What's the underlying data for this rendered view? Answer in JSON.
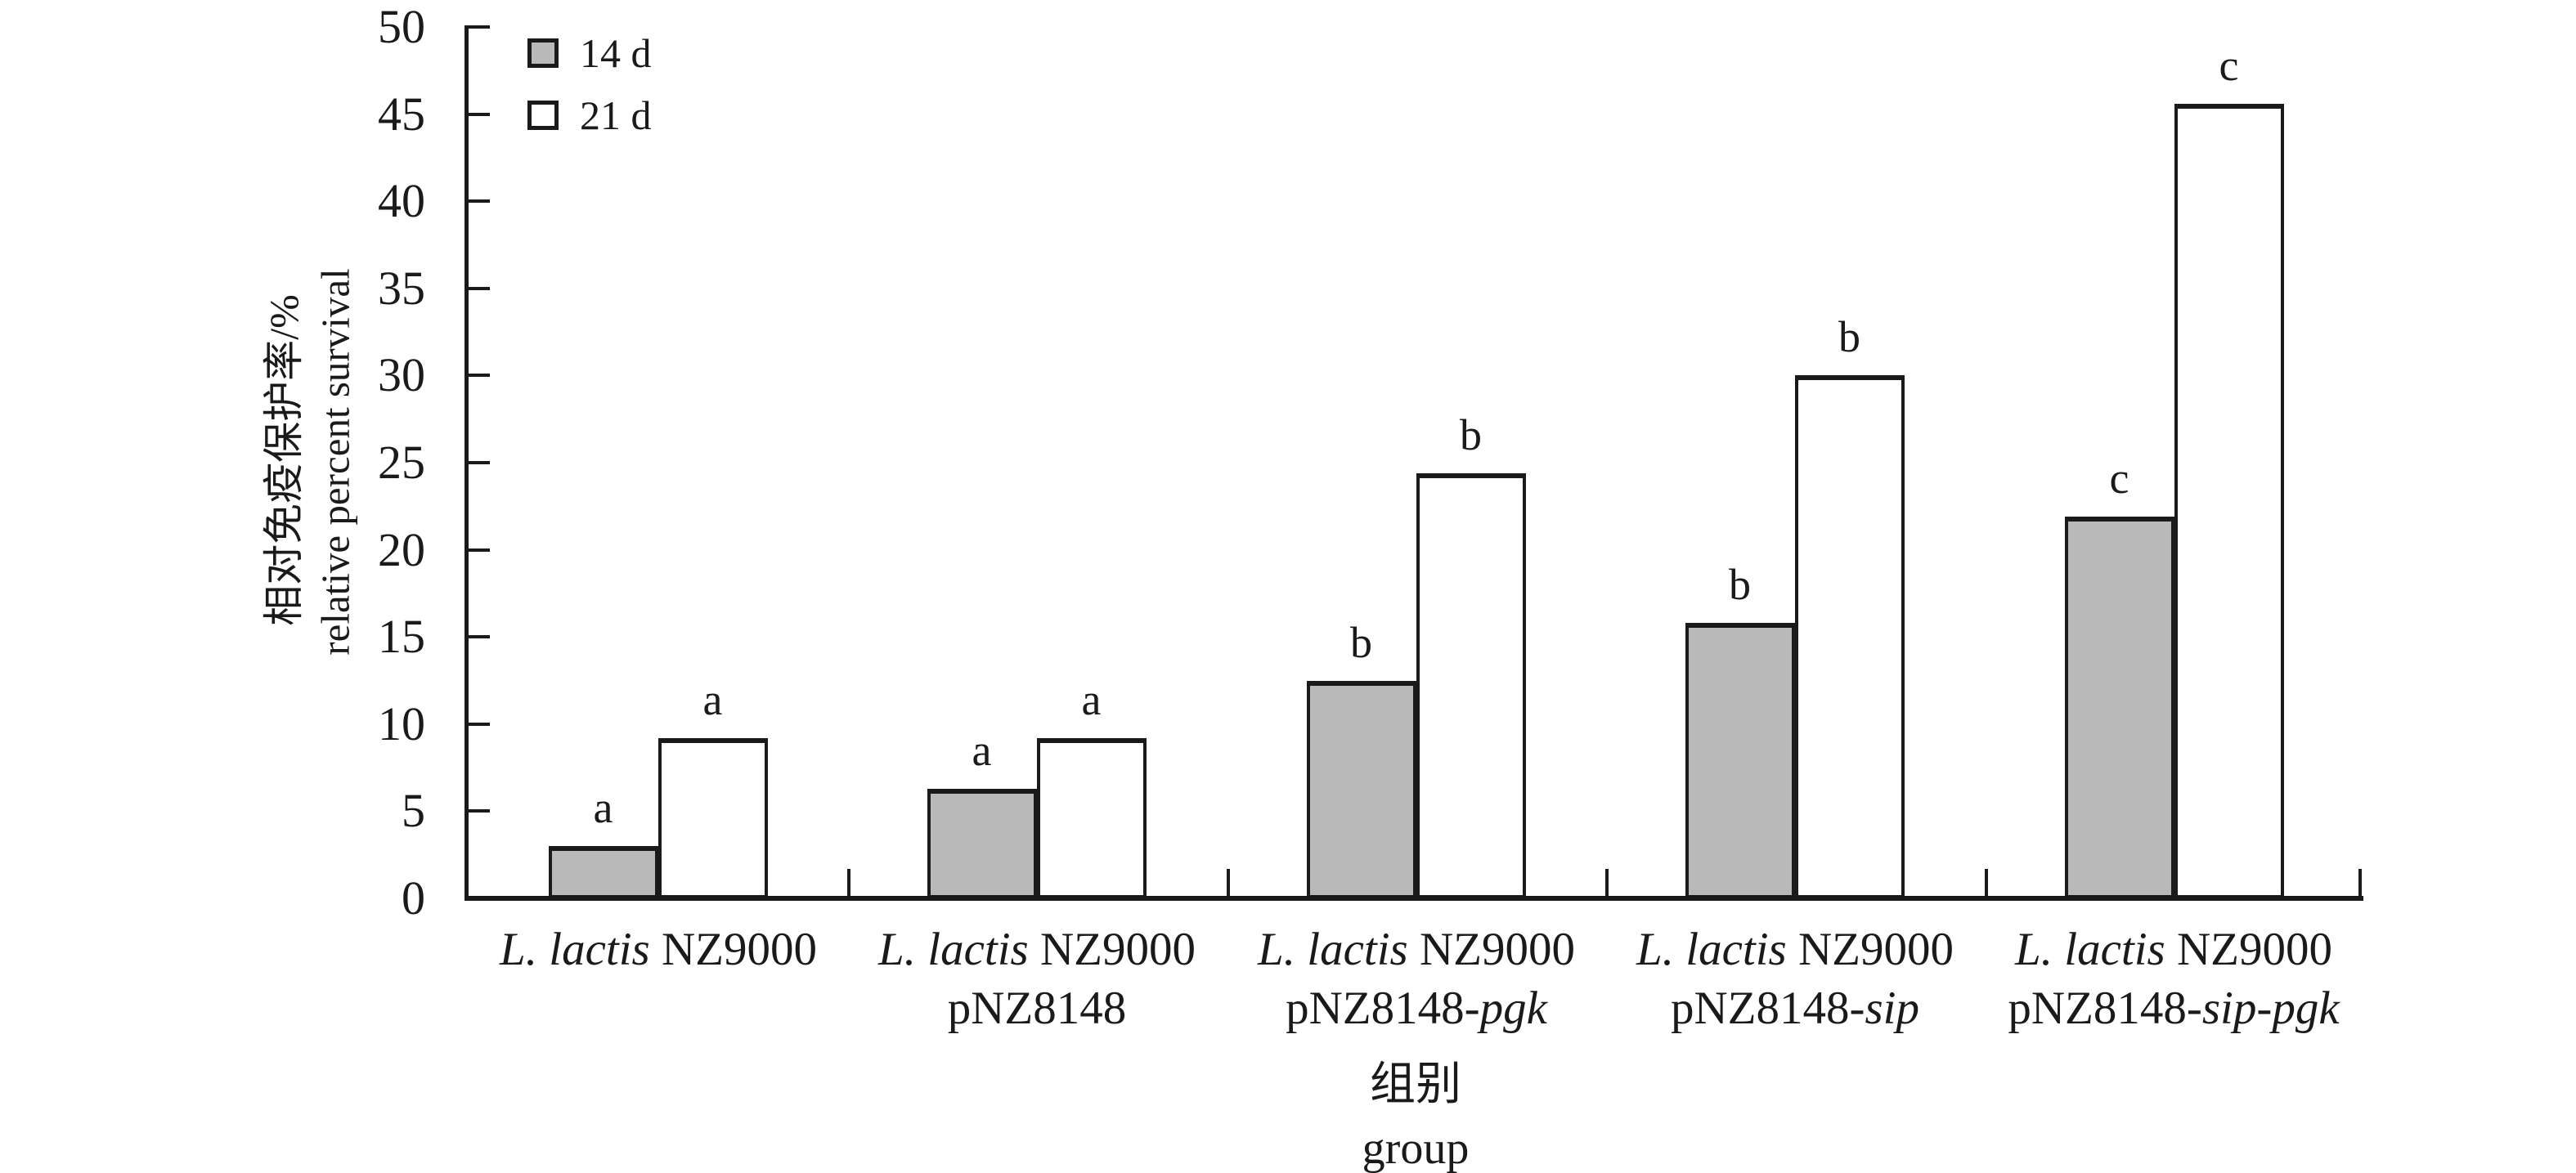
{
  "chart_data": {
    "type": "bar",
    "title": "",
    "ylabel_zh": "相对免疫保护率/%",
    "ylabel_en": "relative percent survival",
    "xlabel_zh": "组别",
    "xlabel_en": "group",
    "ylim": [
      0,
      50
    ],
    "ytick_step": 5,
    "yticks": [
      "0",
      "5",
      "10",
      "15",
      "20",
      "25",
      "30",
      "35",
      "40",
      "45",
      "50"
    ],
    "grid": "off",
    "legend_position": "top-left-inside",
    "legend": [
      {
        "label": "14 d",
        "color": "#b9b9b9"
      },
      {
        "label": "21 d",
        "color": "#ffffff"
      }
    ],
    "categories": [
      {
        "line1_italic": "L. lactis",
        "line1_roman": " NZ9000",
        "line2_roman": "",
        "line2_italic": ""
      },
      {
        "line1_italic": "L. lactis",
        "line1_roman": " NZ9000",
        "line2_roman": "pNZ8148",
        "line2_italic": ""
      },
      {
        "line1_italic": "L. lactis",
        "line1_roman": " NZ9000",
        "line2_roman": "pNZ8148-",
        "line2_italic": "pgk"
      },
      {
        "line1_italic": "L. lactis",
        "line1_roman": " NZ9000",
        "line2_roman": "pNZ8148-",
        "line2_italic": "sip"
      },
      {
        "line1_italic": "L. lactis",
        "line1_roman": " NZ9000",
        "line2_roman": "pNZ8148-",
        "line2_italic": "sip-pgk"
      }
    ],
    "series": [
      {
        "name": "14 d",
        "color": "#b9b9b9",
        "values": [
          3.0,
          6.3,
          12.5,
          15.8,
          21.9
        ],
        "letters": [
          "a",
          "a",
          "b",
          "b",
          "c"
        ]
      },
      {
        "name": "21 d",
        "color": "#ffffff",
        "values": [
          9.2,
          9.2,
          24.4,
          30.0,
          45.6
        ],
        "letters": [
          "a",
          "a",
          "b",
          "b",
          "c"
        ]
      }
    ]
  }
}
